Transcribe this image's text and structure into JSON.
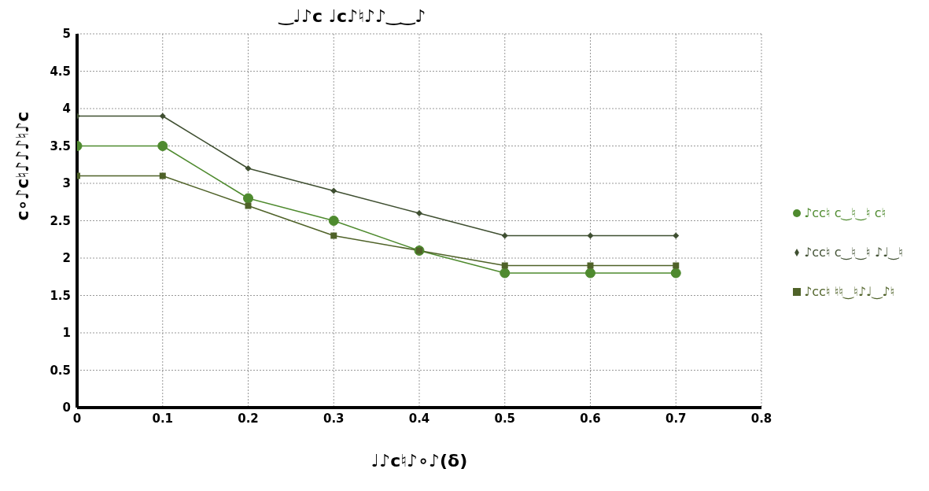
{
  "chart_data": {
    "type": "line",
    "title": "‿♩♪c ♩c♪♮♪♪‿‿♪",
    "xlabel": "♩♪c♮♪∘♪(δ)",
    "ylabel": "c∘♪c♮♪♪♪♮♪c",
    "x": [
      0,
      0.1,
      0.2,
      0.3,
      0.4,
      0.5,
      0.6,
      0.7
    ],
    "xlim": [
      0,
      0.8
    ],
    "xticks": [
      0,
      0.1,
      0.2,
      0.3,
      0.4,
      0.5,
      0.6,
      0.7,
      0.8
    ],
    "ylim": [
      0,
      5
    ],
    "yticks": [
      0,
      0.5,
      1,
      1.5,
      2,
      2.5,
      3,
      3.5,
      4,
      4.5,
      5
    ],
    "grid": true,
    "legend": "right",
    "line_style": "solid",
    "series": [
      {
        "name": "♪cc♮ c‿♮‿♮ c♮",
        "color": "#4e8a2e",
        "marker": "circle",
        "values": [
          3.5,
          3.5,
          2.8,
          2.5,
          2.1,
          1.8,
          1.8,
          1.8
        ]
      },
      {
        "name": "♪cc♮ c‿♮‿♮ ♪♩‿♮",
        "color": "#3f4f31",
        "marker": "diamond",
        "values": [
          3.9,
          3.9,
          3.2,
          2.9,
          2.6,
          2.3,
          2.3,
          2.3
        ]
      },
      {
        "name": "♪cc♮ ♮♮‿♮♪♩‿♪♮",
        "color": "#4f6228",
        "marker": "square",
        "values": [
          3.1,
          3.1,
          2.7,
          2.3,
          2.1,
          1.9,
          1.9,
          1.9
        ]
      }
    ]
  }
}
